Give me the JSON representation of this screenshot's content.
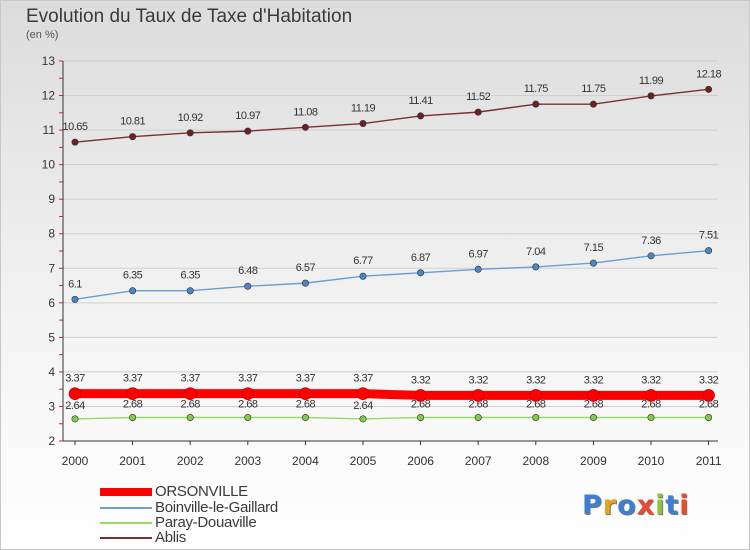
{
  "header": {
    "title": "Evolution du Taux de Taxe d'Habitation",
    "unit": "(en %)"
  },
  "logo": {
    "text": "Proxiti",
    "letter_colors": [
      "#3d7fd3",
      "#e8a21c",
      "#3d7fd3",
      "#e94b2c",
      "#8bc53f",
      "#3d7fd3",
      "#e94b2c"
    ]
  },
  "chart_data": {
    "type": "line",
    "title": "Evolution du Taux de Taxe d'Habitation",
    "ylabel": "(en %)",
    "xlabel": "",
    "x": [
      "2000",
      "2001",
      "2002",
      "2003",
      "2004",
      "2005",
      "2006",
      "2007",
      "2008",
      "2009",
      "2010",
      "2011"
    ],
    "ylim": [
      2,
      13
    ],
    "yticks": [
      "2",
      "3",
      "4",
      "5",
      "6",
      "7",
      "8",
      "9",
      "10",
      "11",
      "12",
      "13"
    ],
    "grid": true,
    "legend_position": "bottom-left",
    "series": [
      {
        "name": "ORSONVILLE",
        "color": "#ff0000",
        "values": [
          3.37,
          3.37,
          3.37,
          3.37,
          3.37,
          3.37,
          3.32,
          3.32,
          3.32,
          3.32,
          3.32,
          3.32
        ],
        "labels": [
          "3.37",
          "3.37",
          "3.37",
          "3.37",
          "3.37",
          "3.37",
          "3.32",
          "3.32",
          "3.32",
          "3.32",
          "3.32",
          "3.32"
        ]
      },
      {
        "name": "Boinville-le-Gaillard",
        "color": "#6a9ed1",
        "values": [
          6.1,
          6.35,
          6.35,
          6.48,
          6.57,
          6.77,
          6.87,
          6.97,
          7.04,
          7.15,
          7.36,
          7.51
        ],
        "labels": [
          "6.1",
          "6.35",
          "6.35",
          "6.48",
          "6.57",
          "6.77",
          "6.87",
          "6.97",
          "7.04",
          "7.15",
          "7.36",
          "7.51"
        ]
      },
      {
        "name": "Paray-Douaville",
        "color": "#9ad86a",
        "values": [
          2.64,
          2.68,
          2.68,
          2.68,
          2.68,
          2.64,
          2.68,
          2.68,
          2.68,
          2.68,
          2.68,
          2.68
        ],
        "labels": [
          "2.64",
          "2.68",
          "2.68",
          "2.68",
          "2.68",
          "2.64",
          "2.68",
          "2.68",
          "2.68",
          "2.68",
          "2.68",
          "2.68"
        ]
      },
      {
        "name": "Ablis",
        "color": "#7a3030",
        "values": [
          10.65,
          10.81,
          10.92,
          10.97,
          11.08,
          11.19,
          11.41,
          11.52,
          11.75,
          11.75,
          11.99,
          12.18
        ],
        "labels": [
          "10.65",
          "10.81",
          "10.92",
          "10.97",
          "11.08",
          "11.19",
          "11.41",
          "11.52",
          "11.75",
          "11.75",
          "11.99",
          "12.18"
        ]
      }
    ]
  }
}
